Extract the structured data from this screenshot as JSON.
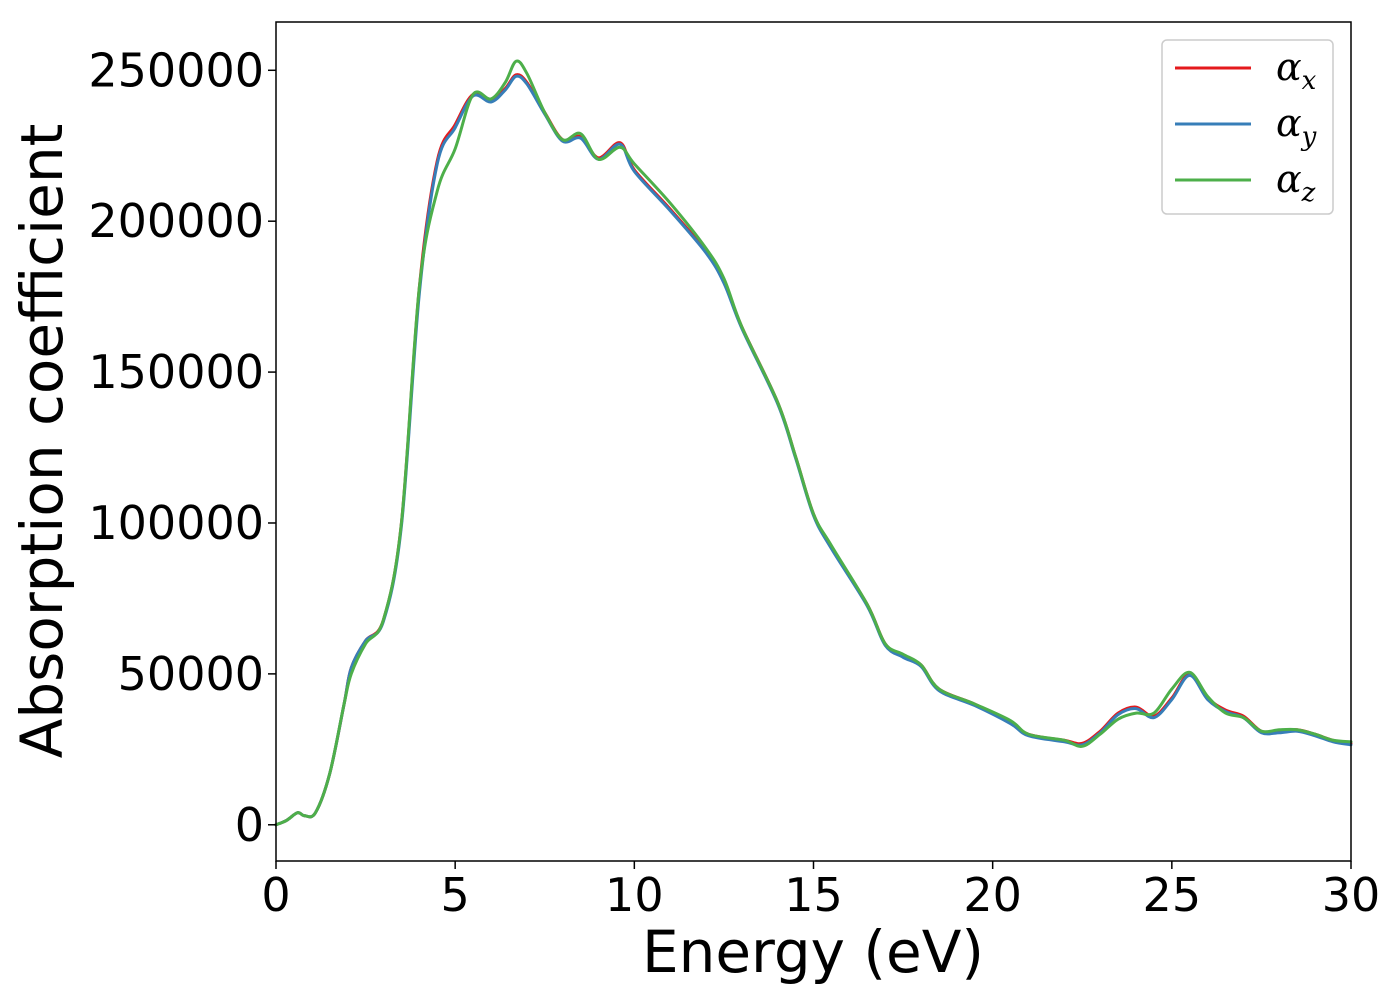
{
  "chart_data": {
    "type": "line",
    "title": "",
    "xlabel": "Energy (eV)",
    "ylabel": "Absorption coefficient",
    "xlim": [
      0,
      30
    ],
    "ylim": [
      -12000,
      266000
    ],
    "xticks": [
      0,
      5,
      10,
      15,
      20,
      25,
      30
    ],
    "xtick_labels": [
      "0",
      "5",
      "10",
      "15",
      "20",
      "25",
      "30"
    ],
    "yticks": [
      0,
      50000,
      100000,
      150000,
      200000,
      250000
    ],
    "ytick_labels": [
      "0",
      "50000",
      "100000",
      "150000",
      "200000",
      "250000"
    ],
    "grid": false,
    "legend_position": "top-right",
    "x": [
      0,
      0.3,
      0.6,
      0.8,
      1.1,
      1.5,
      1.9,
      2.1,
      2.5,
      3.0,
      3.5,
      4.0,
      4.5,
      5.0,
      5.5,
      6.0,
      6.4,
      6.7,
      7.0,
      7.5,
      8.0,
      8.5,
      9.0,
      9.6,
      10.0,
      11.0,
      12.0,
      12.5,
      13.0,
      14.0,
      14.5,
      15.0,
      15.5,
      16.5,
      17.0,
      17.5,
      18.0,
      18.5,
      19.5,
      20.5,
      21.0,
      22.0,
      22.5,
      23.0,
      23.5,
      24.0,
      24.5,
      25.0,
      25.5,
      26.0,
      26.5,
      27.0,
      27.5,
      28.0,
      28.5,
      29.0,
      29.5,
      30.0
    ],
    "series": [
      {
        "name": "αx",
        "label_main": "α",
        "label_sub": "x",
        "color": "#e41a1c",
        "values": [
          0,
          1500,
          4000,
          3000,
          4000,
          17000,
          40000,
          52000,
          61000,
          68000,
          100000,
          178000,
          220000,
          232000,
          242000,
          240000,
          244000,
          248500,
          246000,
          236000,
          227000,
          228000,
          221000,
          226000,
          217000,
          204000,
          190000,
          180000,
          165000,
          140000,
          122000,
          103000,
          92000,
          73000,
          60000,
          56000,
          53000,
          45000,
          40000,
          34000,
          30000,
          28000,
          27000,
          31000,
          37000,
          39000,
          36000,
          42000,
          50000,
          42000,
          38000,
          36000,
          31000,
          31000,
          31500,
          30000,
          28000,
          27000
        ]
      },
      {
        "name": "αy",
        "label_main": "α",
        "label_sub": "y",
        "color": "#377eb8",
        "values": [
          0,
          1500,
          4000,
          3000,
          4000,
          17000,
          40000,
          52000,
          61000,
          67500,
          99000,
          176000,
          219000,
          231000,
          241500,
          239500,
          243500,
          248000,
          245500,
          235500,
          226500,
          227500,
          220500,
          225500,
          216500,
          203500,
          189500,
          179500,
          164500,
          139500,
          121500,
          102500,
          91500,
          72500,
          59500,
          55500,
          52500,
          44500,
          39500,
          33500,
          29500,
          27500,
          26500,
          30500,
          36500,
          38500,
          35500,
          41500,
          49500,
          41500,
          37500,
          35500,
          30500,
          30500,
          31000,
          29500,
          27500,
          26500
        ]
      },
      {
        "name": "αz",
        "label_main": "α",
        "label_sub": "z",
        "color": "#4daf4a",
        "values": [
          0,
          1500,
          4000,
          3000,
          4000,
          17000,
          40000,
          50000,
          60000,
          68000,
          100000,
          178000,
          210000,
          224000,
          242000,
          240500,
          246000,
          253000,
          249000,
          236000,
          227000,
          229000,
          220500,
          224500,
          219000,
          206000,
          191000,
          181000,
          165000,
          140000,
          122000,
          103000,
          92500,
          73000,
          60000,
          56500,
          53000,
          45000,
          40000,
          34500,
          30000,
          28000,
          26000,
          30000,
          35000,
          37000,
          37000,
          45000,
          50500,
          42500,
          37000,
          35500,
          31000,
          31500,
          31500,
          30000,
          28000,
          27500
        ]
      }
    ]
  }
}
